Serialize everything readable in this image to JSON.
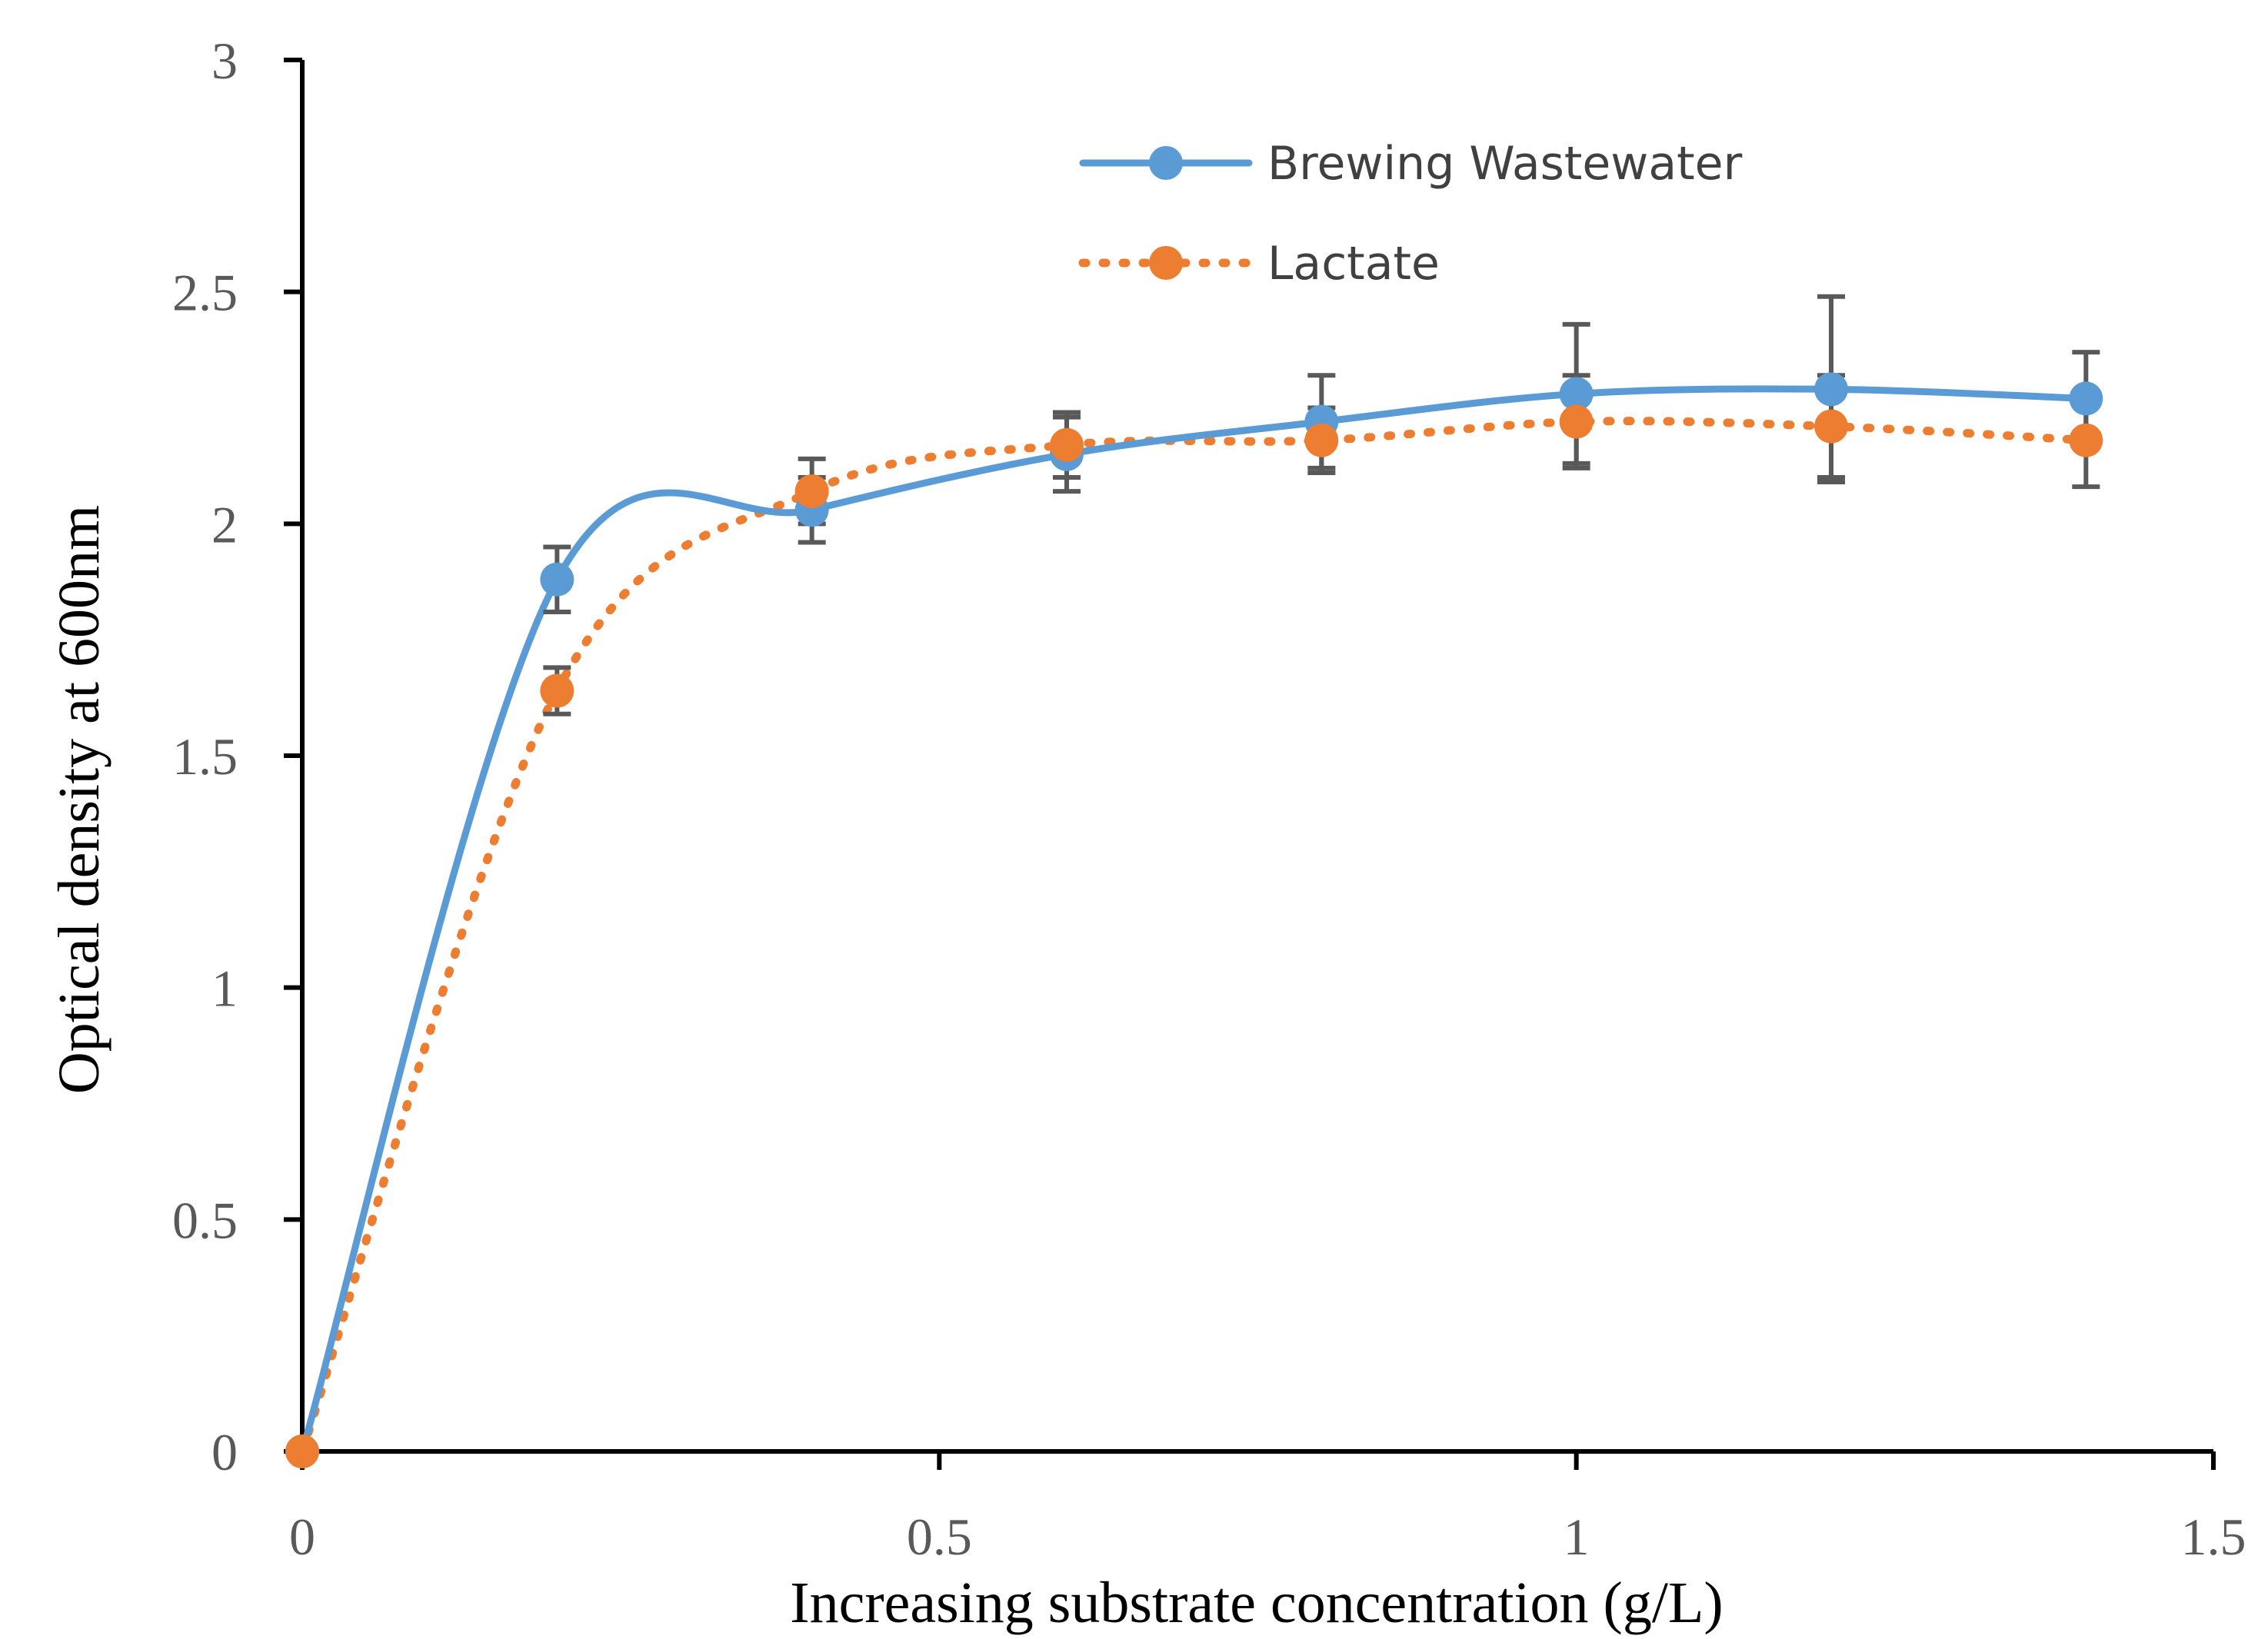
{
  "chart_data": {
    "type": "line",
    "title": "",
    "xlabel": "Increasing substrate concentration (g/L)",
    "ylabel": "Optical density at 600nm",
    "xlim": [
      0,
      1.5
    ],
    "ylim": [
      0,
      3
    ],
    "xticks": [
      "0",
      "0.5",
      "1",
      "1.5"
    ],
    "yticks": [
      "0",
      "0.5",
      "1",
      "1.5",
      "2",
      "2.5",
      "3"
    ],
    "grid": false,
    "legend_position": "top-center",
    "series": [
      {
        "name": "Brewing Wastewater",
        "style": "solid",
        "color": "#5B9BD5",
        "x": [
          0,
          0.2,
          0.4,
          0.6,
          0.8,
          1.0,
          1.2,
          1.4
        ],
        "y": [
          0,
          1.88,
          2.03,
          2.15,
          2.22,
          2.28,
          2.29,
          2.27
        ],
        "err": [
          0,
          0.07,
          0.07,
          0.08,
          0.1,
          0.15,
          0.2,
          0.1
        ]
      },
      {
        "name": "Lactate",
        "style": "dotted",
        "color": "#ED7D31",
        "x": [
          0,
          0.2,
          0.4,
          0.6,
          0.8,
          1.0,
          1.2,
          1.4
        ],
        "y": [
          0,
          1.64,
          2.07,
          2.17,
          2.18,
          2.22,
          2.21,
          2.18
        ],
        "err": [
          0,
          0.05,
          0.07,
          0.07,
          0.07,
          0.1,
          0.11,
          0.1
        ]
      }
    ]
  },
  "colors": {
    "axis": "#000000",
    "error_bar": "#595959"
  }
}
